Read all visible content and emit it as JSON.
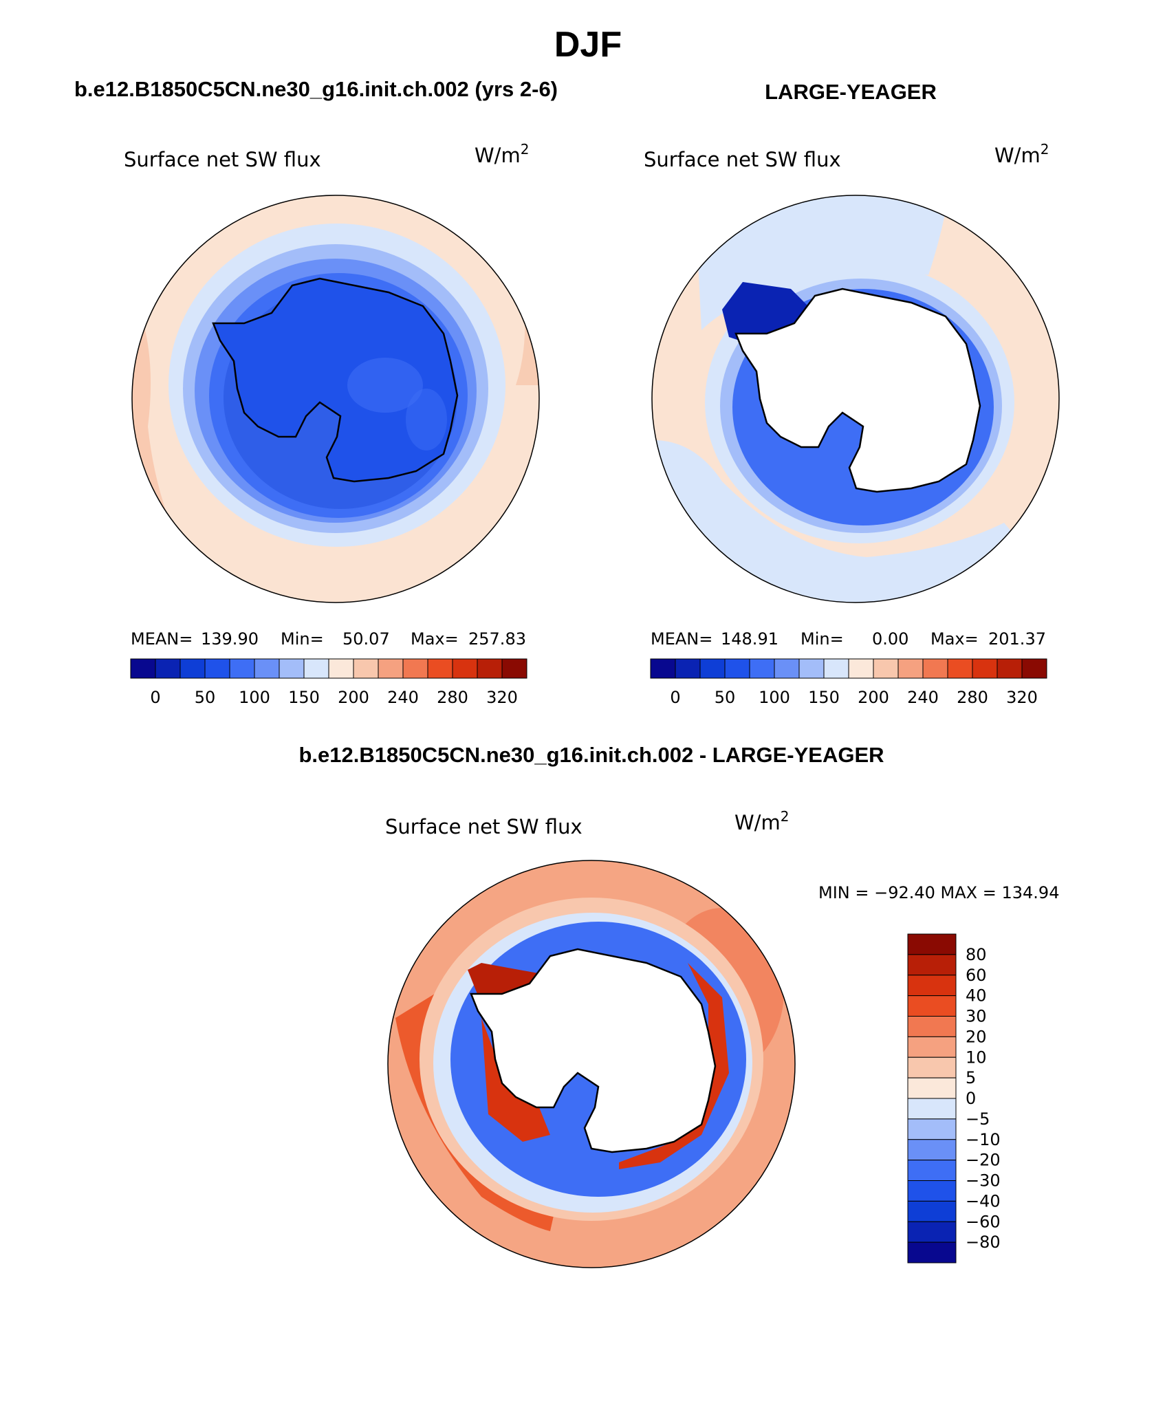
{
  "title": "DJF",
  "panels": [
    {
      "heading": "b.e12.B1850C5CN.ne30_g16.init.ch.002 (yrs 2-6)",
      "field": "Surface net SW flux",
      "units_base": "W/m",
      "units_exp": "2",
      "stats": {
        "mean_label": "MEAN=",
        "mean": "139.90",
        "min_label": "Min=",
        "min": "50.07",
        "max_label": "Max=",
        "max": "257.83"
      }
    },
    {
      "heading": "LARGE-YEAGER",
      "field": "Surface net SW flux",
      "units_base": "W/m",
      "units_exp": "2",
      "stats": {
        "mean_label": "MEAN=",
        "mean": "148.91",
        "min_label": "Min=",
        "min": "0.00",
        "max_label": "Max=",
        "max": "201.37"
      }
    }
  ],
  "abs_colorbar": {
    "colors": [
      "#08088f",
      "#0a23b3",
      "#0e3ed6",
      "#1f52ea",
      "#3e6ef5",
      "#6a90f7",
      "#a3bdf9",
      "#d8e6fb",
      "#fbe8da",
      "#f8c7ad",
      "#f5a180",
      "#f17851",
      "#ea4d22",
      "#d8330f",
      "#b81f07",
      "#8a0a02"
    ],
    "labels": [
      "0",
      "50",
      "100",
      "150",
      "200",
      "240",
      "280",
      "320"
    ]
  },
  "diff_panel": {
    "heading": "b.e12.B1850C5CN.ne30_g16.init.ch.002 - LARGE-YEAGER",
    "field": "Surface net SW flux",
    "units_base": "W/m",
    "units_exp": "2",
    "minmax": "MIN = −92.40 MAX = 134.94"
  },
  "diff_colorbar": {
    "colors": [
      "#8a0a02",
      "#b81f07",
      "#d8330f",
      "#ea4d22",
      "#f17851",
      "#f5a180",
      "#f8c7ad",
      "#fbe8da",
      "#d8e6fb",
      "#a3bdf9",
      "#6a90f7",
      "#3e6ef5",
      "#1f52ea",
      "#0e3ed6",
      "#0a23b3",
      "#08088f"
    ],
    "labels": [
      "80",
      "60",
      "40",
      "30",
      "20",
      "10",
      "5",
      "0",
      "−5",
      "−10",
      "−20",
      "−30",
      "−40",
      "−60",
      "−80"
    ]
  },
  "map_colors": {
    "ocean_warm": "#fbe3d2",
    "ocean_warm2": "#f8c7ad",
    "ice_light": "#d8e6fb",
    "ice_mid": "#a3bdf9",
    "ice_mid2": "#6a90f7",
    "ice_dark": "#2f5ee8",
    "ice_darker": "#1c45d8",
    "diff_bg": "#f5a583",
    "diff_red": "#ec5a2c",
    "diff_darkred": "#b81f07",
    "diff_blue": "#1f52ea",
    "diff_lightblue": "#a3bdf9",
    "land": "#ffffff",
    "coast": "#000000"
  }
}
